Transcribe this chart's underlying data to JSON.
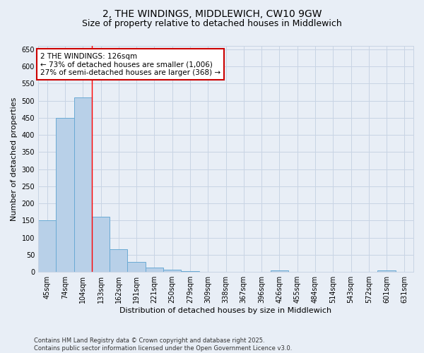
{
  "title_line1": "2, THE WINDINGS, MIDDLEWICH, CW10 9GW",
  "title_line2": "Size of property relative to detached houses in Middlewich",
  "xlabel": "Distribution of detached houses by size in Middlewich",
  "ylabel": "Number of detached properties",
  "footer_line1": "Contains HM Land Registry data © Crown copyright and database right 2025.",
  "footer_line2": "Contains public sector information licensed under the Open Government Licence v3.0.",
  "categories": [
    "45sqm",
    "74sqm",
    "104sqm",
    "133sqm",
    "162sqm",
    "191sqm",
    "221sqm",
    "250sqm",
    "279sqm",
    "309sqm",
    "338sqm",
    "367sqm",
    "396sqm",
    "426sqm",
    "455sqm",
    "484sqm",
    "514sqm",
    "543sqm",
    "572sqm",
    "601sqm",
    "631sqm"
  ],
  "values": [
    150,
    450,
    510,
    160,
    67,
    30,
    12,
    7,
    3,
    0,
    0,
    0,
    0,
    5,
    0,
    0,
    0,
    0,
    0,
    4,
    0
  ],
  "bar_color": "#b8d0e8",
  "bar_edge_color": "#6aaad4",
  "grid_color": "#c8d4e4",
  "background_color": "#e8eef6",
  "red_line_x": 2.5,
  "annotation_text_line1": "2 THE WINDINGS: 126sqm",
  "annotation_text_line2": "← 73% of detached houses are smaller (1,006)",
  "annotation_text_line3": "27% of semi-detached houses are larger (368) →",
  "annotation_box_color": "#ffffff",
  "annotation_box_edge": "#cc0000",
  "ylim": [
    0,
    660
  ],
  "yticks": [
    0,
    50,
    100,
    150,
    200,
    250,
    300,
    350,
    400,
    450,
    500,
    550,
    600,
    650
  ],
  "title_fontsize": 10,
  "subtitle_fontsize": 9,
  "axis_label_fontsize": 8,
  "tick_fontsize": 7,
  "annotation_fontsize": 7.5,
  "footer_fontsize": 6
}
